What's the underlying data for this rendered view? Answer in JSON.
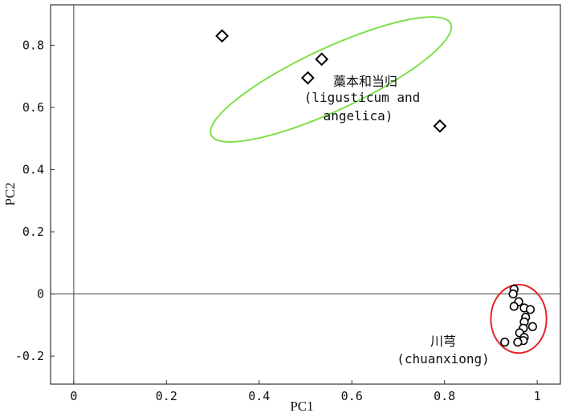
{
  "chart_data": {
    "type": "scatter",
    "xlabel": "PC1",
    "ylabel": "PC2",
    "xlim": [
      -0.05,
      1.05
    ],
    "ylim": [
      -0.29,
      0.93
    ],
    "x_ticks": [
      0,
      0.2,
      0.4,
      0.6,
      0.8,
      1
    ],
    "y_ticks": [
      -0.2,
      0,
      0.2,
      0.4,
      0.6,
      0.8
    ],
    "x_tick_labels": [
      "0",
      "0.2",
      "0.4",
      "0.6",
      "0.8",
      "1"
    ],
    "y_tick_labels": [
      "-0.2",
      "0",
      "0.2",
      "0.4",
      "0.6",
      "0.8"
    ],
    "reference_lines": {
      "x": 0,
      "y": 0
    },
    "grid": false,
    "series": [
      {
        "marker": "diamond",
        "points": [
          {
            "x": 0.32,
            "y": 0.83
          },
          {
            "x": 0.535,
            "y": 0.755
          },
          {
            "x": 0.505,
            "y": 0.695
          },
          {
            "x": 0.79,
            "y": 0.54
          }
        ]
      },
      {
        "marker": "circle",
        "points": [
          {
            "x": 0.95,
            "y": 0.015
          },
          {
            "x": 0.948,
            "y": 0.0
          },
          {
            "x": 0.96,
            "y": -0.025
          },
          {
            "x": 0.95,
            "y": -0.04
          },
          {
            "x": 0.972,
            "y": -0.045
          },
          {
            "x": 0.985,
            "y": -0.05
          },
          {
            "x": 0.975,
            "y": -0.075
          },
          {
            "x": 0.972,
            "y": -0.09
          },
          {
            "x": 0.99,
            "y": -0.105
          },
          {
            "x": 0.97,
            "y": -0.11
          },
          {
            "x": 0.962,
            "y": -0.125
          },
          {
            "x": 0.972,
            "y": -0.14
          },
          {
            "x": 0.97,
            "y": -0.15
          },
          {
            "x": 0.958,
            "y": -0.155
          },
          {
            "x": 0.93,
            "y": -0.155
          }
        ]
      }
    ],
    "groups": [
      {
        "label_line1": "藁本和当归",
        "label_line2": "(ligusticum and",
        "label_line3": "angelica)",
        "color": "#7ee04a",
        "ellipse": {
          "cx": 0.555,
          "cy": 0.69,
          "rx": 0.285,
          "ry": 0.1,
          "angle_deg": -25
        }
      },
      {
        "label_line1": "川芎",
        "label_line2": "(chuanxiong)",
        "color": "#e8232a",
        "ellipse": {
          "cx": 0.96,
          "cy": -0.08,
          "rx": 0.06,
          "ry": 0.11,
          "angle_deg": 0
        }
      }
    ]
  }
}
